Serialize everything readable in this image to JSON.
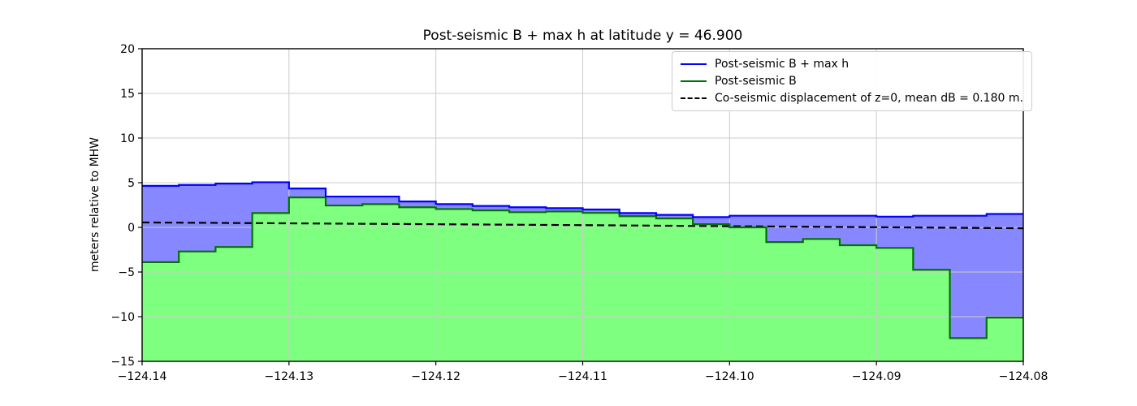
{
  "chart_data": {
    "type": "area",
    "title": "Post-seismic B + max h at latitude y = 46.900",
    "xlabel": "",
    "ylabel": "meters relative to MHW",
    "xlim": [
      -124.14,
      -124.08
    ],
    "ylim": [
      -15,
      20
    ],
    "grid": true,
    "grid_color": "#cccccc",
    "x_step_start": -124.14,
    "x_step_width": 0.0025,
    "xticks": {
      "values": [
        -124.14,
        -124.13,
        -124.12,
        -124.11,
        -124.1,
        -124.09,
        -124.08
      ],
      "labels": [
        "−124.14",
        "−124.13",
        "−124.12",
        "−124.11",
        "−124.10",
        "−124.09",
        "−124.08"
      ]
    },
    "yticks": {
      "values": [
        -15,
        -10,
        -5,
        0,
        5,
        10,
        15,
        20
      ],
      "labels": [
        "−15",
        "−10",
        "−5",
        "0",
        "5",
        "10",
        "15",
        "20"
      ]
    },
    "series": [
      {
        "name": "Post-seismic B + max h",
        "style": "step",
        "line_color": "#0000ff",
        "fill_color": "rgba(0,0,255,0.47)",
        "fill_to": "series-below",
        "values": [
          4.65,
          4.75,
          4.9,
          5.05,
          4.35,
          3.45,
          3.45,
          2.9,
          2.6,
          2.4,
          2.25,
          2.15,
          2.0,
          1.6,
          1.4,
          1.15,
          1.3,
          1.3,
          1.3,
          1.3,
          1.2,
          1.3,
          1.3,
          1.5
        ]
      },
      {
        "name": "Post-seismic B",
        "style": "step",
        "line_color": "#007200",
        "fill_color": "rgba(0,255,0,0.5)",
        "fill_to": "bottom",
        "values": [
          -3.9,
          -2.7,
          -2.2,
          1.6,
          3.35,
          2.45,
          2.6,
          2.25,
          2.05,
          1.9,
          1.7,
          1.78,
          1.62,
          1.25,
          1.0,
          0.35,
          0.0,
          -1.65,
          -1.3,
          -2.0,
          -2.3,
          -4.75,
          -12.4,
          -10.1
        ]
      },
      {
        "name": "Co-seismic displacement of z=0, mean dB = 0.180 m.",
        "style": "dashed-line",
        "line_color": "#000000",
        "points": [
          [
            -124.14,
            0.55
          ],
          [
            -124.11,
            0.25
          ],
          [
            -124.08,
            -0.1
          ]
        ]
      }
    ],
    "legend": {
      "position": "upper right",
      "items": [
        {
          "label": "Post-seismic B + max h",
          "sample": "solid-blue"
        },
        {
          "label": "Post-seismic B",
          "sample": "solid-green"
        },
        {
          "label": "Co-seismic displacement of z=0, mean dB = 0.180 m.",
          "sample": "dashed-black"
        }
      ]
    }
  }
}
